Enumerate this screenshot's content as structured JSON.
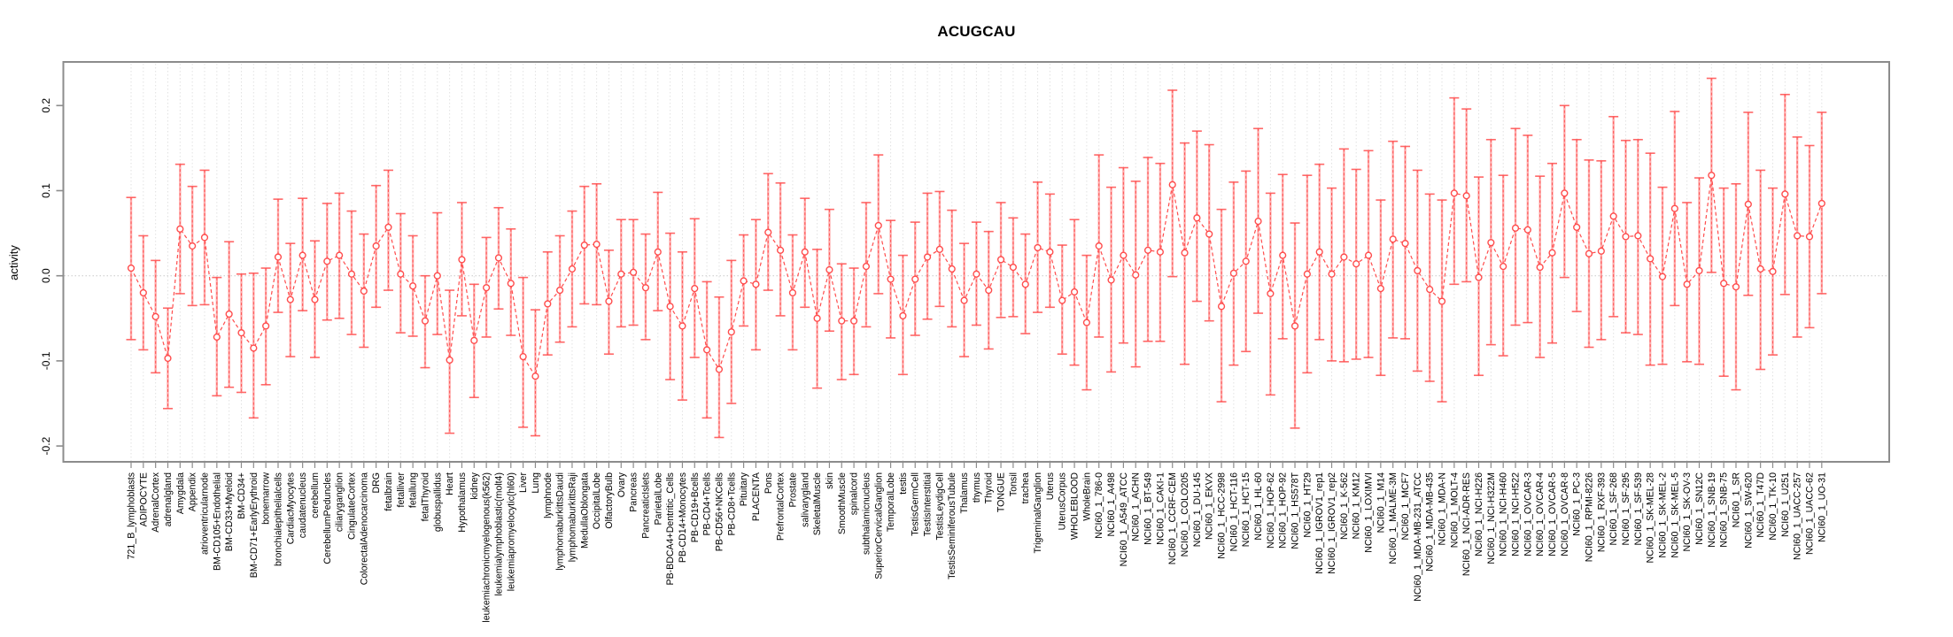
{
  "title": "ACUGCAU",
  "chart_data": {
    "type": "line",
    "title": "ACUGCAU",
    "xlabel": "",
    "ylabel": "activity",
    "ylim": [
      -0.22,
      0.25
    ],
    "yticks": [
      -0.2,
      -0.1,
      0.0,
      0.1,
      0.2
    ],
    "ytick_labels": [
      "-0.2",
      "-0.1",
      "0.0",
      "0.1",
      "0.2"
    ],
    "grid": "vertical dotted gridline per category; dotted horizontal line at 0",
    "legend_position": "none",
    "marker": "open-circle",
    "line_style": "dashed",
    "error_bars": true,
    "colors": {
      "series": "#ff4d4d",
      "error_bar_fill": "#ff9e9e",
      "gridline": "#e2e2e2",
      "zero_line": "#c9c9c9",
      "frame": "#8c8c8c",
      "marker_fill": "#ffffff"
    },
    "categories": [
      "721_B_lymphoblasts",
      "ADIPOCYTE",
      "AdrenalCortex",
      "adrenalgland",
      "Amygdala",
      "Appendix",
      "atrioventricularnode",
      "BM-CD105+Endothelial",
      "BM-CD33+Myeloid",
      "BM-CD34+",
      "BM-CD71+EarlyErythroid",
      "bonemarrow",
      "bronchialepithelialcells",
      "CardiacMyocytes",
      "caudatenucleus",
      "cerebellum",
      "CerebellumPeduncles",
      "ciliaryganglion",
      "CingulateCortex",
      "ColorectalAdenocarcinoma",
      "DRG",
      "fetalbrain",
      "fetalliver",
      "fetallung",
      "fetalThyroid",
      "globuspallidus",
      "Heart",
      "Hypothalamus",
      "kidney",
      "leukemiachronicmyelogenous(k562)",
      "leukemialymphoblastic(molt4)",
      "leukemiapromyelocytic(hl60)",
      "Liver",
      "Lung",
      "lymphnode",
      "lymphomaburkittsDaudi",
      "lymphomaburkittsRaji",
      "MedullaOblongata",
      "OccipitalLobe",
      "OlfactoryBulb",
      "Ovary",
      "Pancreas",
      "PancreaticIslets",
      "ParietalLobe",
      "PB-BDCA4+Dentritic_Cells",
      "PB-CD14+Monocytes",
      "PB-CD19+Bcells",
      "PB-CD4+Tcells",
      "PB-CD56+NKCells",
      "PB-CD8+Tcells",
      "Pituitary",
      "PLACENTA",
      "Pons",
      "PrefrontalCortex",
      "Prostate",
      "salivarygland",
      "SkeletalMuscle",
      "skin",
      "SmoothMuscle",
      "spinalcord",
      "subthalamicnucleus",
      "SuperiorCervicalGanglion",
      "TemporalLobe",
      "testis",
      "TestisGermCell",
      "TestisInterstitial",
      "TestisLeydigCell",
      "TestisSeminiferousTubule",
      "Thalamus",
      "thymus",
      "Thyroid",
      "TONGUE",
      "Tonsil",
      "trachea",
      "TrigeminalGanglion",
      "Uterus",
      "UterusCorpus",
      "WHOLEBLOOD",
      "WholeBrain",
      "NCI60_1_786-0",
      "NCI60_1_A498",
      "NCI60_1_A549_ATCC",
      "NCI60_1_ACHN",
      "NCI60_1_BT-549",
      "NCI60_1_CAKI-1",
      "NCI60_1_CCRF-CEM",
      "NCI60_1_COLO205",
      "NCI60_1_DU-145",
      "NCI60_1_EKVX",
      "NCI60_1_HCC-2998",
      "NCI60_1_HCT-116",
      "NCI60_1_HCT-15",
      "NCI60_1_HL-60",
      "NCI60_1_HOP-62",
      "NCI60_1_HOP-92",
      "NCI60_1_HS578T",
      "NCI60_1_HT29",
      "NCI60_1_IGROV1_rep1",
      "NCI60_1_IGROV1_rep2",
      "NCI60_1_K-562",
      "NCI60_1_KM12",
      "NCI60_1_LOXIMVI",
      "NCI60_1_M14",
      "NCI60_1_MALME-3M",
      "NCI60_1_MCF7",
      "NCI60_1_MDA-MB-231_ATCC",
      "NCI60_1_MDA-MB-435",
      "NCI60_1_MDA-N",
      "NCI60_1_MOLT-4",
      "NCI60_1_NCI-ADR-RES",
      "NCI60_1_NCI-H226",
      "NCI60_1_NCI-H322M",
      "NCI60_1_NCI-H460",
      "NCI60_1_NCI-H522",
      "NCI60_1_OVCAR-3",
      "NCI60_1_OVCAR-4",
      "NCI60_1_OVCAR-5",
      "NCI60_1_OVCAR-8",
      "NCI60_1_PC-3",
      "NCI60_1_RPMI-8226",
      "NCI60_1_RXF-393",
      "NCI60_1_SF-268",
      "NCI60_1_SF-295",
      "NCI60_1_SF-539",
      "NCI60_1_SK-MEL-28",
      "NCI60_1_SK-MEL-2",
      "NCI60_1_SK-MEL-5",
      "NCI60_1_SK-OV-3",
      "NCI60_1_SN12C",
      "NCI60_1_SNB-19",
      "NCI60_1_SNB-75",
      "NCI60_1_SR",
      "NCI60_1_SW-620",
      "NCI60_1_T47D",
      "NCI60_1_TK-10",
      "NCI60_1_U251",
      "NCI60_1_UACC-257",
      "NCI60_1_UACC-62",
      "NCI60_1_UO-31"
    ],
    "series": [
      {
        "name": "activity",
        "values": [
          0.009,
          -0.02,
          -0.048,
          -0.097,
          0.055,
          0.035,
          0.045,
          -0.072,
          -0.045,
          -0.067,
          -0.085,
          -0.059,
          0.022,
          -0.028,
          0.024,
          -0.028,
          0.017,
          0.024,
          0.002,
          -0.018,
          0.035,
          0.057,
          0.002,
          -0.012,
          -0.053,
          0.0,
          -0.099,
          0.019,
          -0.076,
          -0.014,
          0.021,
          -0.009,
          -0.095,
          -0.118,
          -0.033,
          -0.017,
          0.008,
          0.036,
          0.037,
          -0.03,
          0.002,
          0.004,
          -0.014,
          0.028,
          -0.036,
          -0.059,
          -0.015,
          -0.087,
          -0.11,
          -0.066,
          -0.006,
          -0.01,
          0.051,
          0.03,
          -0.02,
          0.028,
          -0.05,
          0.007,
          -0.053,
          -0.053,
          0.011,
          0.059,
          -0.004,
          -0.047,
          -0.004,
          0.022,
          0.031,
          0.008,
          -0.029,
          0.002,
          -0.017,
          0.019,
          0.01,
          -0.01,
          0.033,
          0.028,
          -0.029,
          -0.019,
          -0.055,
          0.035,
          -0.005,
          0.024,
          0.001,
          0.03,
          0.028,
          0.107,
          0.027,
          0.068,
          0.049,
          -0.036,
          0.003,
          0.017,
          0.064,
          -0.021,
          0.024,
          -0.059,
          0.002,
          0.028,
          0.002,
          0.022,
          0.014,
          0.024,
          -0.015,
          0.043,
          0.038,
          0.006,
          -0.016,
          -0.03,
          0.097,
          0.094,
          -0.002,
          0.039,
          0.011,
          0.056,
          0.054,
          0.01,
          0.027,
          0.097,
          0.057,
          0.026,
          0.029,
          0.07,
          0.046,
          0.047,
          0.02,
          -0.001,
          0.079,
          -0.01,
          0.006,
          0.118,
          -0.009,
          -0.013,
          0.084,
          0.008,
          0.005,
          0.096,
          0.047,
          0.046,
          0.085
        ],
        "upper": [
          0.092,
          0.047,
          0.018,
          -0.038,
          0.131,
          0.105,
          0.124,
          -0.002,
          0.04,
          0.002,
          0.003,
          0.009,
          0.09,
          0.038,
          0.091,
          0.041,
          0.085,
          0.097,
          0.076,
          0.049,
          0.106,
          0.124,
          0.073,
          0.047,
          0.0,
          0.074,
          -0.017,
          0.086,
          -0.01,
          0.045,
          0.08,
          0.055,
          -0.002,
          -0.04,
          0.028,
          0.047,
          0.076,
          0.105,
          0.108,
          0.03,
          0.066,
          0.066,
          0.049,
          0.098,
          0.05,
          0.028,
          0.067,
          -0.007,
          -0.025,
          0.018,
          0.048,
          0.066,
          0.12,
          0.109,
          0.048,
          0.091,
          0.031,
          0.078,
          0.014,
          0.009,
          0.086,
          0.142,
          0.065,
          0.024,
          0.063,
          0.097,
          0.099,
          0.077,
          0.038,
          0.063,
          0.052,
          0.086,
          0.068,
          0.049,
          0.11,
          0.096,
          0.036,
          0.066,
          0.024,
          0.142,
          0.104,
          0.127,
          0.111,
          0.139,
          0.132,
          0.218,
          0.156,
          0.17,
          0.154,
          0.078,
          0.11,
          0.123,
          0.173,
          0.097,
          0.119,
          0.062,
          0.118,
          0.131,
          0.103,
          0.149,
          0.125,
          0.147,
          0.089,
          0.158,
          0.152,
          0.124,
          0.096,
          0.089,
          0.209,
          0.196,
          0.116,
          0.16,
          0.118,
          0.173,
          0.165,
          0.117,
          0.132,
          0.2,
          0.16,
          0.136,
          0.135,
          0.187,
          0.159,
          0.16,
          0.144,
          0.104,
          0.193,
          0.086,
          0.115,
          0.232,
          0.103,
          0.108,
          0.192,
          0.124,
          0.103,
          0.213,
          0.163,
          0.153,
          0.192
        ],
        "lower": [
          -0.075,
          -0.087,
          -0.114,
          -0.156,
          -0.021,
          -0.035,
          -0.034,
          -0.141,
          -0.131,
          -0.137,
          -0.167,
          -0.128,
          -0.043,
          -0.095,
          -0.041,
          -0.096,
          -0.052,
          -0.05,
          -0.069,
          -0.084,
          -0.037,
          -0.017,
          -0.067,
          -0.071,
          -0.108,
          -0.069,
          -0.185,
          -0.047,
          -0.143,
          -0.072,
          -0.039,
          -0.07,
          -0.178,
          -0.188,
          -0.093,
          -0.078,
          -0.06,
          -0.033,
          -0.034,
          -0.092,
          -0.06,
          -0.058,
          -0.075,
          -0.041,
          -0.122,
          -0.146,
          -0.096,
          -0.167,
          -0.19,
          -0.15,
          -0.059,
          -0.087,
          -0.017,
          -0.047,
          -0.087,
          -0.037,
          -0.132,
          -0.065,
          -0.122,
          -0.116,
          -0.06,
          -0.021,
          -0.073,
          -0.116,
          -0.07,
          -0.051,
          -0.036,
          -0.06,
          -0.095,
          -0.058,
          -0.086,
          -0.049,
          -0.048,
          -0.068,
          -0.043,
          -0.037,
          -0.092,
          -0.105,
          -0.134,
          -0.072,
          -0.113,
          -0.079,
          -0.107,
          -0.077,
          -0.077,
          -0.001,
          -0.104,
          -0.03,
          -0.053,
          -0.148,
          -0.105,
          -0.089,
          -0.044,
          -0.14,
          -0.074,
          -0.179,
          -0.114,
          -0.075,
          -0.1,
          -0.101,
          -0.098,
          -0.096,
          -0.117,
          -0.073,
          -0.074,
          -0.112,
          -0.124,
          -0.148,
          -0.01,
          -0.007,
          -0.117,
          -0.081,
          -0.094,
          -0.058,
          -0.055,
          -0.096,
          -0.079,
          -0.002,
          -0.042,
          -0.084,
          -0.075,
          -0.048,
          -0.067,
          -0.069,
          -0.105,
          -0.104,
          -0.035,
          -0.101,
          -0.104,
          0.004,
          -0.118,
          -0.134,
          -0.023,
          -0.11,
          -0.093,
          -0.022,
          -0.072,
          -0.061,
          -0.021
        ]
      }
    ]
  }
}
